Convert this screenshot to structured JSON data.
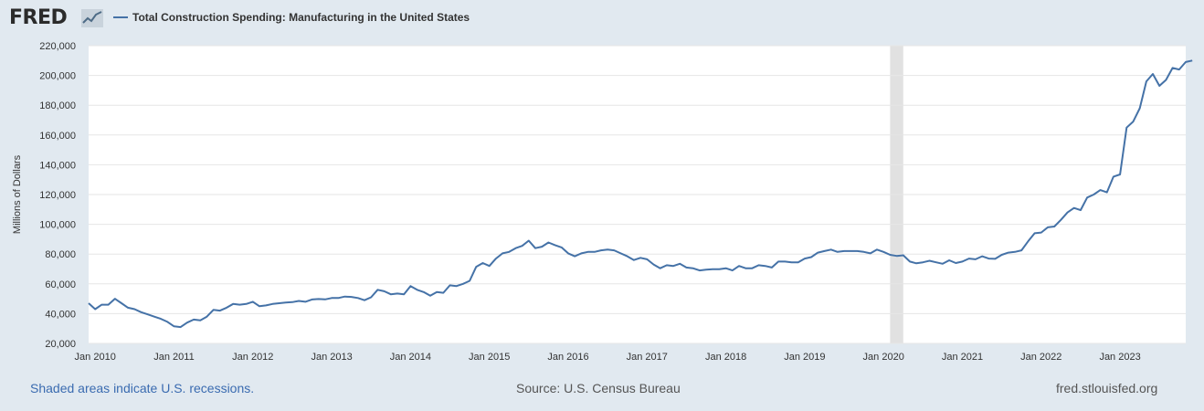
{
  "header": {
    "logo_text": "FRED",
    "logo_icon": "line-chart-icon"
  },
  "footer": {
    "recession_note": "Shaded areas indicate U.S. recessions.",
    "source": "Source: U.S. Census Bureau",
    "site": "fred.stlouisfed.org"
  },
  "colors": {
    "line": "#4572a7",
    "plot_bg": "#ffffff",
    "page_bg": "#e1e9f0",
    "recession": "#e1e1e1",
    "grid": "#e6e6e6"
  },
  "chart_data": {
    "type": "line",
    "title": "",
    "ylabel": "Millions of Dollars",
    "xlabel": "",
    "ylim": [
      20000,
      220000
    ],
    "xlim": [
      "2009-12",
      "2023-11"
    ],
    "yticks": [
      20000,
      40000,
      60000,
      80000,
      100000,
      120000,
      140000,
      160000,
      180000,
      200000,
      220000
    ],
    "ytick_labels": [
      "20,000",
      "40,000",
      "60,000",
      "80,000",
      "100,000",
      "120,000",
      "140,000",
      "160,000",
      "180,000",
      "200,000",
      "220,000"
    ],
    "xticks": [
      "2010-01",
      "2011-01",
      "2012-01",
      "2013-01",
      "2014-01",
      "2015-01",
      "2016-01",
      "2017-01",
      "2018-01",
      "2019-01",
      "2020-01",
      "2021-01",
      "2022-01",
      "2023-01"
    ],
    "xtick_labels": [
      "Jan 2010",
      "Jan 2011",
      "Jan 2012",
      "Jan 2013",
      "Jan 2014",
      "Jan 2015",
      "Jan 2016",
      "Jan 2017",
      "Jan 2018",
      "Jan 2019",
      "Jan 2020",
      "Jan 2021",
      "Jan 2022",
      "Jan 2023"
    ],
    "grid": true,
    "legend_position": "top-left",
    "recessions": [
      {
        "start": "2020-02",
        "end": "2020-04"
      }
    ],
    "series": [
      {
        "name": "Total Construction Spending: Manufacturing in the United States",
        "start": "2009-12",
        "frequency": "monthly",
        "values": [
          47000,
          43000,
          46000,
          46000,
          50000,
          47000,
          44000,
          43000,
          41000,
          39500,
          38000,
          36500,
          34500,
          31500,
          31000,
          34000,
          36000,
          35500,
          38000,
          42500,
          42000,
          44000,
          46500,
          46000,
          46500,
          48000,
          45000,
          45500,
          46500,
          47000,
          47500,
          47700,
          48500,
          48000,
          49500,
          49800,
          49600,
          50500,
          50500,
          51500,
          51200,
          50500,
          49000,
          51000,
          56000,
          55000,
          53000,
          53500,
          53000,
          58500,
          56000,
          54500,
          52000,
          54500,
          54000,
          59000,
          58500,
          60000,
          62000,
          71500,
          74000,
          72000,
          77000,
          80500,
          81500,
          84000,
          85500,
          89000,
          84000,
          85000,
          87800,
          86000,
          84500,
          80500,
          78500,
          80500,
          81500,
          81500,
          82500,
          83000,
          82500,
          80500,
          78500,
          76000,
          77500,
          76500,
          73000,
          70500,
          72500,
          72000,
          73500,
          71000,
          70500,
          69000,
          69500,
          69800,
          69800,
          70500,
          69000,
          72000,
          70500,
          70500,
          72500,
          72000,
          71000,
          75000,
          75000,
          74500,
          74500,
          77000,
          78000,
          81000,
          82000,
          83000,
          81500,
          82000,
          82000,
          82000,
          81500,
          80500,
          83000,
          81500,
          79500,
          78800,
          79200,
          75000,
          73800,
          74500,
          75500,
          74500,
          73500,
          75800,
          74000,
          75000,
          77000,
          76500,
          78500,
          77000,
          76800,
          79500,
          81000,
          81500,
          82500,
          88500,
          94000,
          94500,
          98000,
          98500,
          103000,
          108000,
          111000,
          109500,
          118000,
          120000,
          123000,
          121500,
          132000,
          133500,
          165000,
          169000,
          178000,
          196000,
          201000,
          193000,
          197000,
          205000,
          204000,
          209000,
          210000
        ]
      }
    ]
  }
}
